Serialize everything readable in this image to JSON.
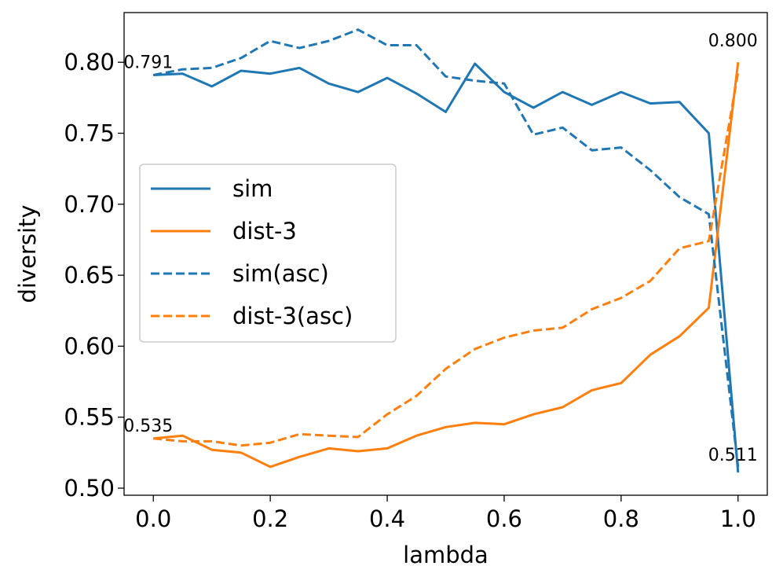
{
  "chart_data": {
    "type": "line",
    "xlabel": "lambda",
    "ylabel": "diversity",
    "xlim": [
      -0.05,
      1.05
    ],
    "ylim": [
      0.495,
      0.835
    ],
    "xticks": [
      0.0,
      0.2,
      0.4,
      0.6,
      0.8,
      1.0
    ],
    "xtick_labels": [
      "0.0",
      "0.2",
      "0.4",
      "0.6",
      "0.8",
      "1.0"
    ],
    "yticks": [
      0.5,
      0.55,
      0.6,
      0.65,
      0.7,
      0.75,
      0.8
    ],
    "ytick_labels": [
      "0.50",
      "0.55",
      "0.60",
      "0.65",
      "0.70",
      "0.75",
      "0.80"
    ],
    "grid": false,
    "legend_position": "center-left",
    "x": [
      0.0,
      0.05,
      0.1,
      0.15,
      0.2,
      0.25,
      0.3,
      0.35,
      0.4,
      0.45,
      0.5,
      0.55,
      0.6,
      0.65,
      0.7,
      0.75,
      0.8,
      0.85,
      0.9,
      0.95,
      1.0
    ],
    "series": [
      {
        "name": "sim",
        "color": "#1f77b4",
        "dash": "solid",
        "values": [
          0.791,
          0.792,
          0.783,
          0.794,
          0.792,
          0.796,
          0.785,
          0.779,
          0.789,
          0.778,
          0.765,
          0.799,
          0.779,
          0.768,
          0.779,
          0.77,
          0.779,
          0.771,
          0.772,
          0.75,
          0.511
        ]
      },
      {
        "name": "dist-3",
        "color": "#ff7f0e",
        "dash": "solid",
        "values": [
          0.535,
          0.537,
          0.527,
          0.525,
          0.515,
          0.522,
          0.528,
          0.526,
          0.528,
          0.537,
          0.543,
          0.546,
          0.545,
          0.552,
          0.557,
          0.569,
          0.574,
          0.594,
          0.607,
          0.627,
          0.8
        ]
      },
      {
        "name": "sim(asc)",
        "color": "#1f77b4",
        "dash": "dashed",
        "values": [
          0.791,
          0.795,
          0.796,
          0.803,
          0.815,
          0.81,
          0.815,
          0.823,
          0.812,
          0.812,
          0.79,
          0.787,
          0.785,
          0.749,
          0.754,
          0.738,
          0.74,
          0.724,
          0.705,
          0.693,
          0.515
        ]
      },
      {
        "name": "dist-3(asc)",
        "color": "#ff7f0e",
        "dash": "dashed",
        "values": [
          0.535,
          0.533,
          0.533,
          0.53,
          0.532,
          0.538,
          0.537,
          0.536,
          0.552,
          0.565,
          0.584,
          0.598,
          0.606,
          0.611,
          0.613,
          0.626,
          0.634,
          0.646,
          0.669,
          0.674,
          0.793
        ]
      }
    ],
    "annotations": [
      {
        "x": 0.0,
        "y": 0.791,
        "text": "0.791"
      },
      {
        "x": 0.0,
        "y": 0.535,
        "text": "0.535"
      },
      {
        "x": 1.0,
        "y": 0.8,
        "text": "0.800"
      },
      {
        "x": 1.0,
        "y": 0.511,
        "text": "0.511"
      }
    ]
  }
}
